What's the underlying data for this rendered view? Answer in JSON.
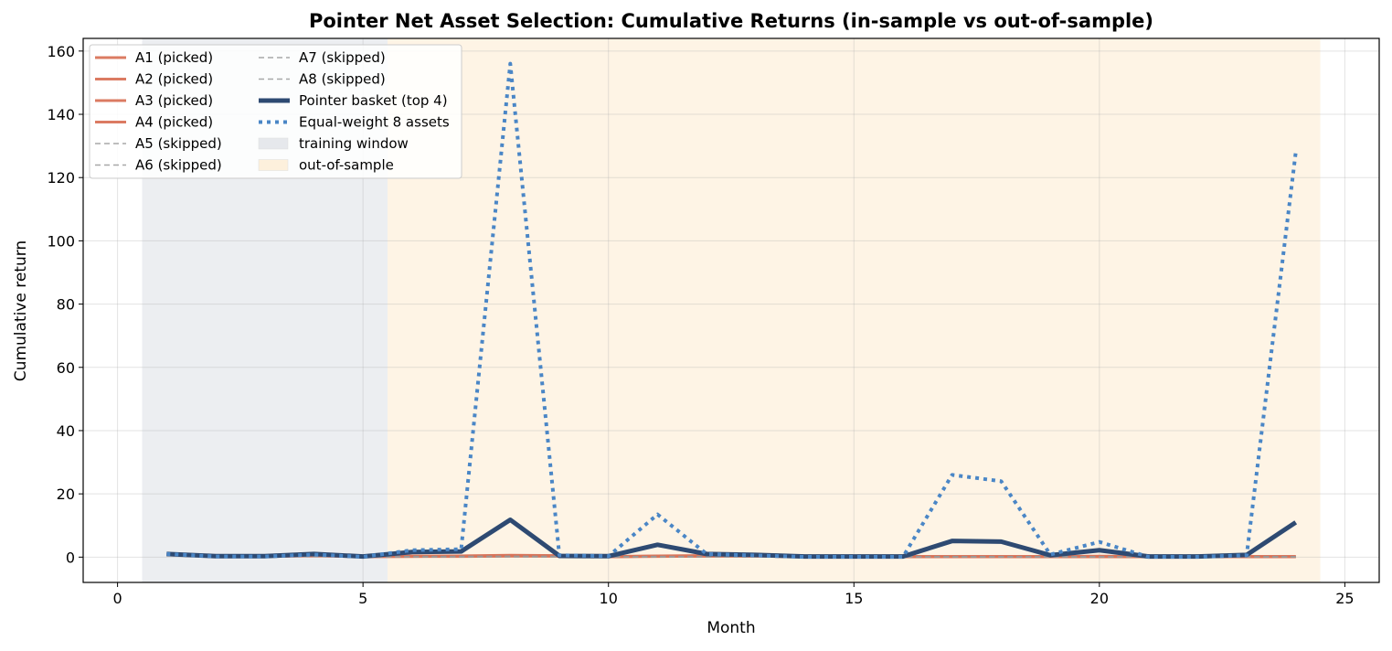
{
  "chart_data": {
    "type": "line",
    "title": "Pointer Net Asset Selection: Cumulative Returns (in-sample vs out-of-sample)",
    "xlabel": "Month",
    "ylabel": "Cumulative return",
    "xlim": [
      -0.7,
      25.7
    ],
    "ylim": [
      -8,
      164
    ],
    "xticks": [
      0,
      5,
      10,
      15,
      20,
      25
    ],
    "yticks": [
      0,
      20,
      40,
      60,
      80,
      100,
      120,
      140,
      160
    ],
    "grid": true,
    "legend_position": "top-left",
    "x": [
      1,
      2,
      3,
      4,
      5,
      6,
      7,
      8,
      9,
      10,
      11,
      12,
      13,
      14,
      15,
      16,
      17,
      18,
      19,
      20,
      21,
      22,
      23,
      24
    ],
    "regions": [
      {
        "name": "training window",
        "x_range": [
          0.5,
          5.5
        ],
        "color": "#e6e8ec"
      },
      {
        "name": "out-of-sample",
        "x_range": [
          5.5,
          24.5
        ],
        "color": "#fdf0dc"
      }
    ],
    "series": [
      {
        "name": "A1  (picked)",
        "style": "solid",
        "color": "#d9745a",
        "values": [
          1.0,
          0.3,
          0.3,
          0.6,
          0.2,
          0.3,
          0.4,
          0.6,
          0.5,
          0.2,
          0.4,
          0.5,
          0.5,
          0.2,
          0.2,
          0.2,
          0.2,
          0.2,
          0.2,
          0.3,
          0.2,
          0.2,
          0.2,
          0.2
        ]
      },
      {
        "name": "A2  (picked)",
        "style": "solid",
        "color": "#d9745a",
        "values": [
          0.9,
          0.2,
          0.3,
          0.5,
          0.2,
          0.3,
          0.3,
          0.5,
          0.4,
          0.2,
          0.3,
          0.4,
          0.4,
          0.2,
          0.2,
          0.2,
          0.2,
          0.2,
          0.2,
          0.2,
          0.2,
          0.2,
          0.2,
          0.2
        ]
      },
      {
        "name": "A3  (picked)",
        "style": "solid",
        "color": "#d9745a",
        "values": [
          0.8,
          0.2,
          0.2,
          0.5,
          0.2,
          0.2,
          0.3,
          0.4,
          0.3,
          0.1,
          0.3,
          0.3,
          0.3,
          0.1,
          0.1,
          0.1,
          0.1,
          0.1,
          0.1,
          0.2,
          0.1,
          0.1,
          0.1,
          0.1
        ]
      },
      {
        "name": "A4  (picked)",
        "style": "solid",
        "color": "#d9745a",
        "values": [
          0.7,
          0.2,
          0.2,
          0.4,
          0.1,
          0.2,
          0.2,
          0.3,
          0.3,
          0.1,
          0.2,
          0.3,
          0.3,
          0.1,
          0.1,
          0.1,
          0.1,
          0.1,
          0.1,
          0.1,
          0.1,
          0.1,
          0.1,
          0.1
        ]
      },
      {
        "name": "A5  (skipped)",
        "style": "dashed",
        "color": "#999999",
        "values": [
          0.6,
          0.1,
          0.2,
          0.4,
          0.1,
          0.2,
          0.2,
          0.3,
          0.2,
          0.1,
          0.2,
          0.2,
          0.2,
          0.1,
          0.1,
          0.1,
          0.1,
          0.1,
          0.1,
          0.1,
          0.1,
          0.1,
          0.1,
          0.1
        ]
      },
      {
        "name": "A6  (skipped)",
        "style": "dashed",
        "color": "#999999",
        "values": [
          0.6,
          0.1,
          0.1,
          0.3,
          0.1,
          0.1,
          0.2,
          0.2,
          0.2,
          0.1,
          0.1,
          0.2,
          0.2,
          0.1,
          0.1,
          0.1,
          0.1,
          0.1,
          0.1,
          0.1,
          0.1,
          0.1,
          0.1,
          0.1
        ]
      },
      {
        "name": "A7  (skipped)",
        "style": "dashed",
        "color": "#999999",
        "values": [
          0.5,
          0.1,
          0.1,
          0.3,
          0.1,
          0.1,
          0.1,
          0.2,
          0.1,
          0.1,
          0.1,
          0.1,
          0.1,
          0.1,
          0.1,
          0.1,
          0.1,
          0.1,
          0.1,
          0.1,
          0.1,
          0.1,
          0.1,
          0.1
        ]
      },
      {
        "name": "A8  (skipped)",
        "style": "dashed",
        "color": "#999999",
        "values": [
          0.5,
          0.1,
          0.1,
          0.2,
          0.1,
          0.1,
          0.1,
          0.1,
          0.1,
          0.1,
          0.1,
          0.1,
          0.1,
          0.1,
          0.1,
          0.1,
          0.1,
          0.1,
          0.1,
          0.1,
          0.1,
          0.1,
          0.1,
          0.1
        ]
      },
      {
        "name": "Pointer basket (top 4)",
        "style": "thick",
        "color": "#2e4a72",
        "values": [
          1.0,
          0.3,
          0.3,
          1.0,
          0.2,
          1.6,
          1.8,
          11.8,
          0.4,
          0.3,
          3.9,
          1.0,
          0.7,
          0.2,
          0.2,
          0.2,
          5.1,
          4.9,
          0.6,
          2.2,
          0.2,
          0.2,
          0.7,
          11.0
        ]
      },
      {
        "name": "Equal-weight 8 assets",
        "style": "dotted",
        "color": "#4a86c6",
        "values": [
          1.0,
          0.2,
          0.2,
          0.8,
          0.1,
          2.2,
          2.5,
          156.0,
          0.6,
          0.3,
          13.5,
          1.0,
          0.5,
          0.1,
          0.1,
          0.1,
          26.0,
          24.0,
          0.8,
          4.8,
          0.1,
          0.1,
          0.6,
          128.0
        ]
      }
    ]
  }
}
